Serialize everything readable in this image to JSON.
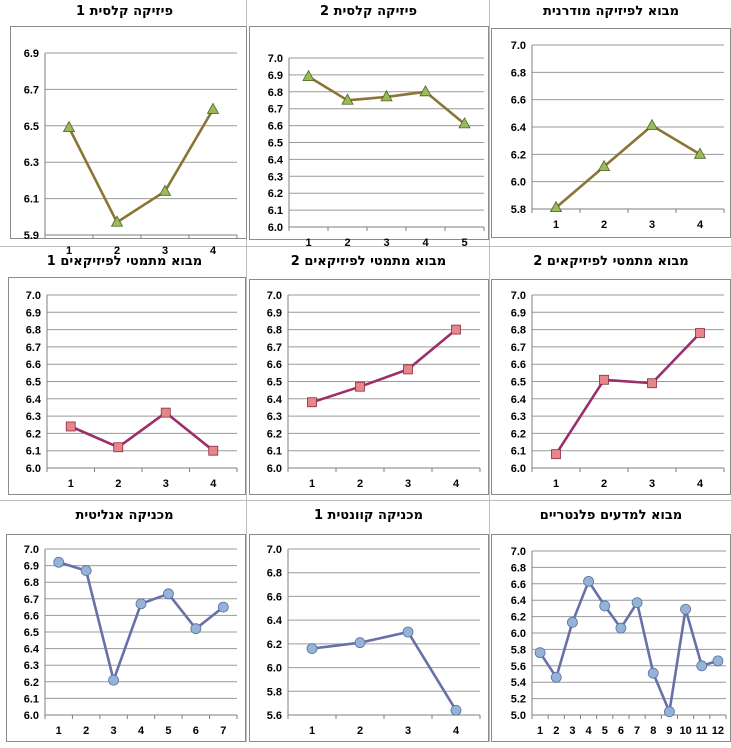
{
  "chart_data": [
    {
      "type": "line",
      "title": "פיזיקה קלסית 1",
      "categories": [
        "1",
        "2",
        "3",
        "4"
      ],
      "series": [
        {
          "values": [
            6.49,
            5.97,
            6.14,
            6.59
          ]
        }
      ],
      "ylim": [
        5.9,
        6.9
      ],
      "yticks": [
        "5.9",
        "6.1",
        "6.3",
        "6.5",
        "6.7",
        "6.9"
      ],
      "color": "#8b7536",
      "marker": "triangle",
      "marker_color": "#9bbb59"
    },
    {
      "type": "line",
      "title": "פיזיקה קלסית 2",
      "categories": [
        "1",
        "2",
        "3",
        "4",
        "5"
      ],
      "series": [
        {
          "values": [
            6.89,
            6.75,
            6.77,
            6.8,
            6.61
          ]
        }
      ],
      "ylim": [
        6.0,
        7.0
      ],
      "yticks": [
        "6.0",
        "6.1",
        "6.2",
        "6.3",
        "6.4",
        "6.5",
        "6.6",
        "6.7",
        "6.8",
        "6.9",
        "7.0"
      ],
      "color": "#8b7536",
      "marker": "triangle",
      "marker_color": "#9bbb59"
    },
    {
      "type": "line",
      "title": "מבוא לפיזיקה מודרנית",
      "categories": [
        "1",
        "2",
        "3",
        "4"
      ],
      "series": [
        {
          "values": [
            5.81,
            6.11,
            6.41,
            6.2
          ]
        }
      ],
      "ylim": [
        5.8,
        7.0
      ],
      "yticks": [
        "5.8",
        "6.0",
        "6.2",
        "6.4",
        "6.6",
        "6.8",
        "7.0"
      ],
      "color": "#8b7536",
      "marker": "triangle",
      "marker_color": "#9bbb59"
    },
    {
      "type": "line",
      "title": "מבוא מתמטי לפיזיקאים 1",
      "categories": [
        "1",
        "2",
        "3",
        "4"
      ],
      "series": [
        {
          "values": [
            6.24,
            6.12,
            6.32,
            6.1
          ]
        }
      ],
      "ylim": [
        6.0,
        7.0
      ],
      "yticks": [
        "6.0",
        "6.1",
        "6.2",
        "6.3",
        "6.4",
        "6.5",
        "6.6",
        "6.7",
        "6.8",
        "6.9",
        "7.0"
      ],
      "color": "#9c2f6a",
      "marker": "square",
      "marker_color": "#e8858b"
    },
    {
      "type": "line",
      "title": "מבוא מתמטי לפיזיקאים 2",
      "categories": [
        "1",
        "2",
        "3",
        "4"
      ],
      "series": [
        {
          "values": [
            6.38,
            6.47,
            6.57,
            6.8
          ]
        }
      ],
      "ylim": [
        6.0,
        7.0
      ],
      "yticks": [
        "6.0",
        "6.1",
        "6.2",
        "6.3",
        "6.4",
        "6.5",
        "6.6",
        "6.7",
        "6.8",
        "6.9",
        "7.0"
      ],
      "color": "#9c2f6a",
      "marker": "square",
      "marker_color": "#e8858b"
    },
    {
      "type": "line",
      "title": "מבוא מתמטי לפיזיקאים 2",
      "categories": [
        "1",
        "2",
        "3",
        "4"
      ],
      "series": [
        {
          "values": [
            6.08,
            6.51,
            6.49,
            6.78
          ]
        }
      ],
      "ylim": [
        6.0,
        7.0
      ],
      "yticks": [
        "6.0",
        "6.1",
        "6.2",
        "6.3",
        "6.4",
        "6.5",
        "6.6",
        "6.7",
        "6.8",
        "6.9",
        "7.0"
      ],
      "color": "#9c2f6a",
      "marker": "square",
      "marker_color": "#e8858b"
    },
    {
      "type": "line",
      "title": "מכניקה אנליטית",
      "categories": [
        "1",
        "2",
        "3",
        "4",
        "5",
        "6",
        "7"
      ],
      "series": [
        {
          "values": [
            6.92,
            6.87,
            6.21,
            6.67,
            6.73,
            6.52,
            6.65
          ]
        }
      ],
      "ylim": [
        6.0,
        7.0
      ],
      "yticks": [
        "6.0",
        "6.1",
        "6.2",
        "6.3",
        "6.4",
        "6.5",
        "6.6",
        "6.7",
        "6.8",
        "6.9",
        "7.0"
      ],
      "color": "#6870a8",
      "marker": "circle",
      "marker_color": "#95b3d7"
    },
    {
      "type": "line",
      "title": "מכניקה קוונטית 1",
      "categories": [
        "1",
        "2",
        "3",
        "4"
      ],
      "series": [
        {
          "values": [
            6.16,
            6.21,
            6.3,
            5.64
          ]
        }
      ],
      "ylim": [
        5.6,
        7.0
      ],
      "yticks": [
        "5.6",
        "5.8",
        "6.0",
        "6.2",
        "6.4",
        "6.6",
        "6.8",
        "7.0"
      ],
      "color": "#6870a8",
      "marker": "circle",
      "marker_color": "#95b3d7"
    },
    {
      "type": "line",
      "title": "מבוא למדעים פלנטריים",
      "categories": [
        "1",
        "2",
        "3",
        "4",
        "5",
        "6",
        "7",
        "8",
        "9",
        "10",
        "11",
        "12"
      ],
      "series": [
        {
          "values": [
            5.76,
            5.46,
            6.13,
            6.63,
            6.33,
            6.06,
            6.37,
            5.51,
            5.04,
            6.29,
            5.6,
            5.66
          ]
        }
      ],
      "ylim": [
        5.0,
        7.0
      ],
      "yticks": [
        "5.0",
        "5.2",
        "5.4",
        "5.6",
        "5.8",
        "6.0",
        "6.2",
        "6.4",
        "6.6",
        "6.8",
        "7.0"
      ],
      "color": "#6870a8",
      "marker": "circle",
      "marker_color": "#95b3d7"
    }
  ]
}
